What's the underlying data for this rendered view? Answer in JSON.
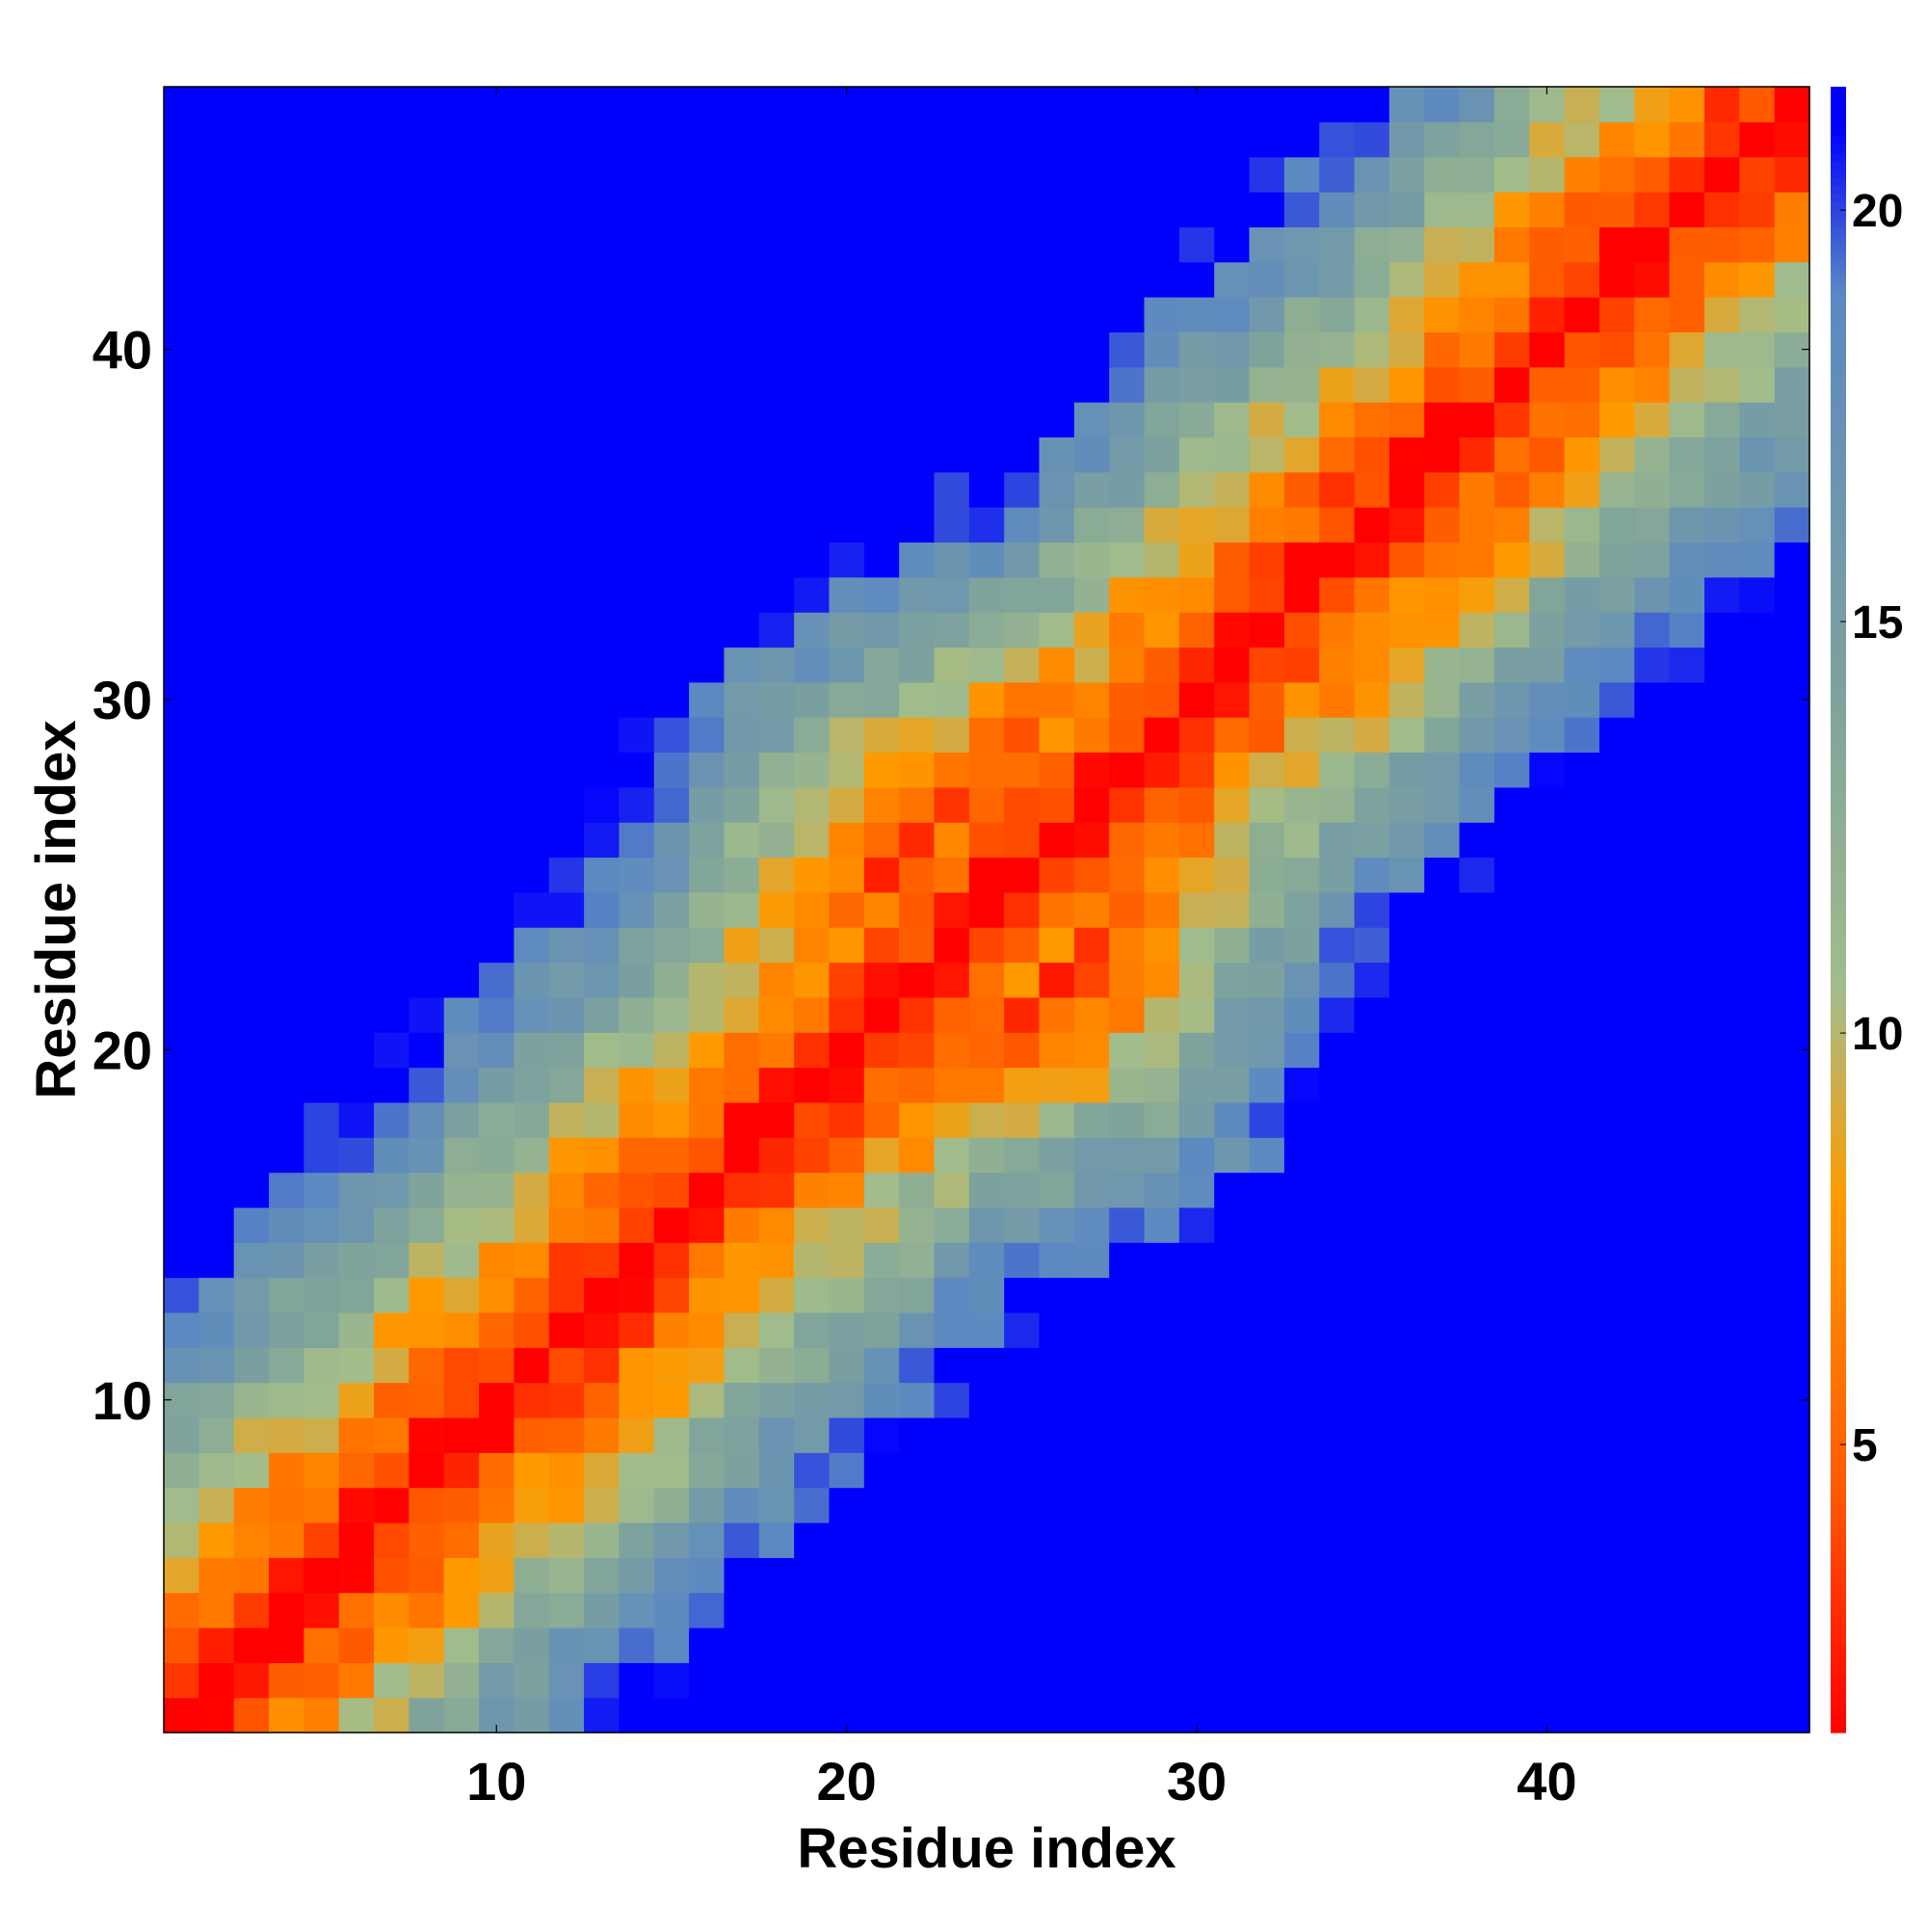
{
  "chart_data": {
    "type": "heatmap",
    "title": "",
    "xlabel": "Residue index",
    "ylabel": "Residue index",
    "n": 47,
    "xlim": [
      0.5,
      47.5
    ],
    "ylim": [
      0.5,
      47.5
    ],
    "x_ticks": [
      10,
      20,
      30,
      40
    ],
    "y_ticks": [
      10,
      20,
      30,
      40
    ],
    "colorbar": {
      "min": 1.5,
      "max": 21.5,
      "ticks": [
        5,
        10,
        15,
        20
      ],
      "colors": [
        "#ff0000",
        "#ff5a00",
        "#ff9b00",
        "#a3bd8a",
        "#7fa39c",
        "#5b88c2",
        "#0000ff"
      ],
      "stops": [
        1.5,
        4.5,
        8.0,
        10.5,
        14.0,
        19.0,
        21.0
      ]
    },
    "description_note": "",
    "values_generation": {
      "diagonal_value": 1.5,
      "per_offset_increase": 1.55,
      "cap": 21.5
    },
    "values": []
  }
}
